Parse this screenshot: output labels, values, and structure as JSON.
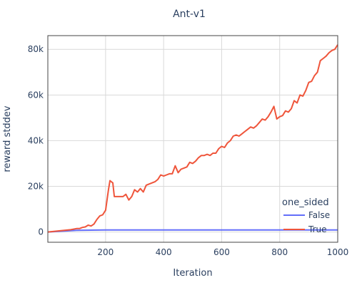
{
  "chart_data": {
    "type": "line",
    "title": "Ant-v1",
    "xlabel": "Iteration",
    "ylabel": "reward stddev",
    "xlim": [
      1,
      1000
    ],
    "ylim": [
      -4500,
      86000
    ],
    "x_ticks": [
      200,
      400,
      600,
      800,
      1000
    ],
    "x_tick_labels": [
      "200",
      "400",
      "600",
      "800",
      "1000"
    ],
    "y_ticks": [
      0,
      20000,
      40000,
      60000,
      80000
    ],
    "y_tick_labels": [
      "0",
      "20k",
      "40k",
      "60k",
      "80k"
    ],
    "grid": true,
    "legend": {
      "title": "one_sided",
      "position": "right"
    },
    "series": [
      {
        "name": "False",
        "color": "#636efa",
        "x": [
          1,
          100,
          200,
          400,
          600,
          800,
          1000
        ],
        "y": [
          0,
          700,
          900,
          900,
          900,
          900,
          900
        ]
      },
      {
        "name": "True",
        "color": "#ef553b",
        "x": [
          1,
          40,
          80,
          100,
          110,
          120,
          130,
          140,
          150,
          160,
          170,
          180,
          190,
          200,
          205,
          210,
          215,
          220,
          225,
          230,
          240,
          250,
          260,
          270,
          280,
          290,
          300,
          310,
          320,
          330,
          340,
          350,
          360,
          370,
          380,
          390,
          400,
          410,
          420,
          430,
          440,
          450,
          460,
          470,
          480,
          490,
          500,
          510,
          520,
          530,
          540,
          550,
          560,
          570,
          580,
          590,
          600,
          610,
          620,
          630,
          640,
          650,
          660,
          670,
          680,
          690,
          700,
          710,
          720,
          730,
          740,
          750,
          760,
          770,
          780,
          790,
          800,
          810,
          820,
          830,
          840,
          850,
          860,
          870,
          880,
          890,
          900,
          910,
          920,
          930,
          940,
          950,
          960,
          970,
          980,
          990,
          1000
        ],
        "y": [
          0,
          500,
          1000,
          1500,
          1500,
          2000,
          2200,
          3000,
          2600,
          3500,
          5500,
          7000,
          7500,
          9500,
          14000,
          18500,
          22500,
          22000,
          21500,
          15500,
          15500,
          15500,
          15500,
          16500,
          14000,
          15500,
          18500,
          17500,
          19000,
          17500,
          20500,
          21000,
          21500,
          22000,
          23000,
          25000,
          24500,
          25000,
          25500,
          25500,
          29000,
          26000,
          27500,
          28000,
          28500,
          30500,
          30000,
          31000,
          32500,
          33500,
          33500,
          34000,
          33500,
          34500,
          34500,
          36500,
          37500,
          37000,
          39000,
          40000,
          42000,
          42500,
          42000,
          43000,
          44000,
          45000,
          46000,
          45500,
          46500,
          48000,
          49500,
          49000,
          50500,
          52500,
          55000,
          49500,
          50500,
          51000,
          53000,
          52500,
          54000,
          57500,
          56500,
          60000,
          59500,
          62000,
          65500,
          66000,
          68500,
          70000,
          75000,
          76000,
          77000,
          78500,
          79500,
          80000,
          82000
        ]
      }
    ]
  }
}
